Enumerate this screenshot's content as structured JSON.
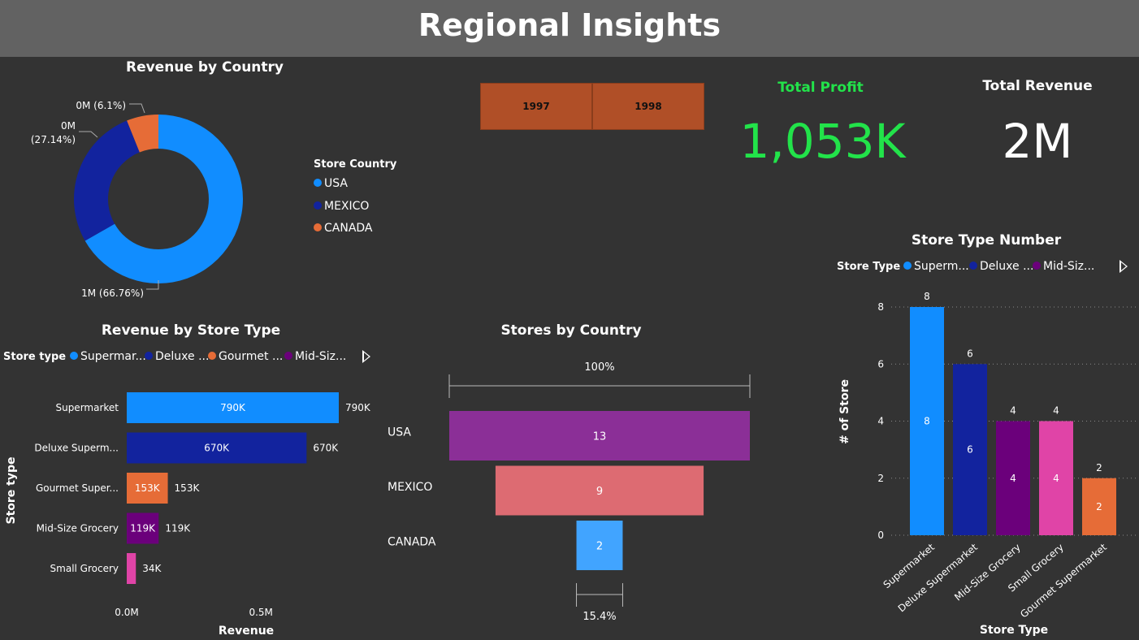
{
  "page": {
    "title": "Regional Insights"
  },
  "slicer": {
    "years": [
      "1997",
      "1998"
    ]
  },
  "kpis": {
    "profit": {
      "label": "Total Profit",
      "value": "1,053K",
      "color": "#22e34a"
    },
    "revenue": {
      "label": "Total Revenue",
      "value": "2M",
      "color": "#ffffff"
    }
  },
  "donut": {
    "title": "Revenue by Country",
    "legend_title": "Store Country",
    "slices": [
      {
        "name": "USA",
        "pct": 66.76,
        "label": "1M (66.76%)",
        "color": "#118dff"
      },
      {
        "name": "MEXICO",
        "pct": 27.14,
        "label_line1": "0M",
        "label_line2": "(27.14%)",
        "color": "#12239e"
      },
      {
        "name": "CANADA",
        "pct": 6.1,
        "label": "0M (6.1%)",
        "color": "#e66c37"
      }
    ]
  },
  "bar": {
    "title": "Revenue by Store Type",
    "legend_title": "Store type",
    "legend_items": [
      "Supermar...",
      "Deluxe ...",
      "Gourmet ...",
      "Mid-Siz..."
    ],
    "y_axis_title": "Store type",
    "x_axis_title": "Revenue",
    "x_ticks": [
      "0.0M",
      "0.5M"
    ]
  },
  "funnel": {
    "title": "Stores by Country",
    "top_pct": "100%",
    "bottom_pct": "15.4%"
  },
  "column": {
    "title": "Store Type Number",
    "legend_title": "Store Type",
    "legend_items": [
      "Superm...",
      "Deluxe ...",
      "Mid-Siz..."
    ],
    "y_axis_title": "# of Store",
    "x_axis_title": "Store Type"
  },
  "chart_data": [
    {
      "type": "pie",
      "title": "Revenue by Country",
      "categories": [
        "USA",
        "MEXICO",
        "CANADA"
      ],
      "values": [
        66.76,
        27.14,
        6.1
      ],
      "unit": "%",
      "legend": "right"
    },
    {
      "type": "bar",
      "orientation": "horizontal",
      "title": "Revenue by Store Type",
      "categories": [
        "Supermarket",
        "Deluxe Superm...",
        "Gourmet Super...",
        "Mid-Size Grocery",
        "Small Grocery"
      ],
      "values": [
        790,
        670,
        153,
        119,
        34
      ],
      "value_labels": [
        "790K",
        "670K",
        "153K",
        "119K",
        "34K"
      ],
      "colors": [
        "#118dff",
        "#12239e",
        "#e66c37",
        "#6b007b",
        "#e044a7"
      ],
      "xlabel": "Revenue",
      "ylabel": "Store type",
      "xlim": [
        0,
        800
      ]
    },
    {
      "type": "bar",
      "orientation": "funnel",
      "title": "Stores by Country",
      "categories": [
        "USA",
        "MEXICO",
        "CANADA"
      ],
      "values": [
        13,
        9,
        2
      ],
      "colors": [
        "#8b2f97",
        "#dd6b72",
        "#41a4ff"
      ]
    },
    {
      "type": "bar",
      "title": "Store Type Number",
      "categories": [
        "Supermarket",
        "Deluxe Supermarket",
        "Mid-Size Grocery",
        "Small Grocery",
        "Gourmet Supermarket"
      ],
      "values": [
        8,
        6,
        4,
        4,
        2
      ],
      "colors": [
        "#118dff",
        "#12239e",
        "#6b007b",
        "#e044a7",
        "#e66c37"
      ],
      "xlabel": "Store Type",
      "ylabel": "# of Store",
      "ylim": [
        0,
        8
      ],
      "y_ticks": [
        0,
        2,
        4,
        6,
        8
      ],
      "grid": true
    }
  ]
}
